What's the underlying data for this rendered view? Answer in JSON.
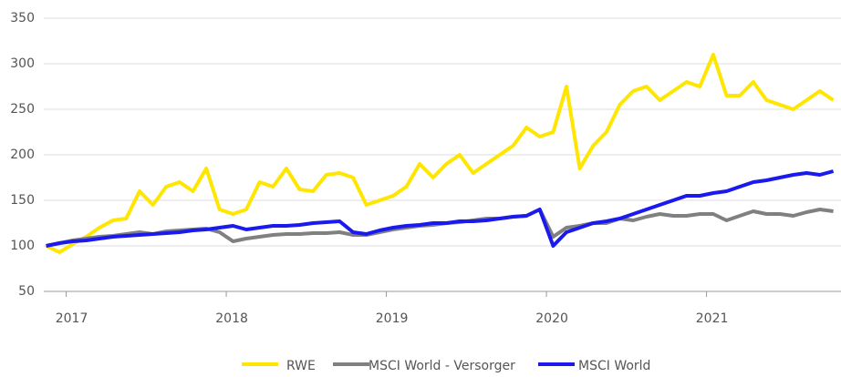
{
  "chart_data": {
    "type": "line",
    "x": [
      2016.875,
      2016.958,
      2017.042,
      2017.125,
      2017.208,
      2017.292,
      2017.375,
      2017.458,
      2017.542,
      2017.625,
      2017.708,
      2017.792,
      2017.875,
      2017.958,
      2018.042,
      2018.125,
      2018.208,
      2018.292,
      2018.375,
      2018.458,
      2018.542,
      2018.625,
      2018.708,
      2018.792,
      2018.875,
      2018.958,
      2019.042,
      2019.125,
      2019.208,
      2019.292,
      2019.375,
      2019.458,
      2019.542,
      2019.625,
      2019.708,
      2019.792,
      2019.875,
      2019.958,
      2020.042,
      2020.125,
      2020.208,
      2020.292,
      2020.375,
      2020.458,
      2020.542,
      2020.625,
      2020.708,
      2020.792,
      2020.875,
      2020.958,
      2021.042,
      2021.125,
      2021.208,
      2021.292,
      2021.375,
      2021.458,
      2021.542,
      2021.625,
      2021.708,
      2021.792
    ],
    "series": [
      {
        "name": "RWE",
        "color": "#ffe600",
        "values": [
          100,
          93,
          102,
          110,
          120,
          128,
          130,
          160,
          145,
          165,
          170,
          160,
          185,
          140,
          135,
          140,
          170,
          165,
          185,
          162,
          160,
          178,
          180,
          175,
          145,
          150,
          155,
          165,
          190,
          175,
          190,
          200,
          180,
          190,
          200,
          210,
          230,
          220,
          225,
          275,
          185,
          210,
          225,
          255,
          270,
          275,
          260,
          270,
          280,
          275,
          310,
          265,
          265,
          280,
          260,
          255,
          250,
          260,
          270,
          260
        ]
      },
      {
        "name": "MSCI World - Versorger",
        "color": "#808080",
        "values": [
          100,
          103,
          106,
          108,
          110,
          111,
          113,
          115,
          113,
          116,
          117,
          118,
          119,
          115,
          105,
          108,
          110,
          112,
          113,
          113,
          114,
          114,
          115,
          112,
          112,
          115,
          118,
          120,
          122,
          123,
          125,
          126,
          128,
          130,
          130,
          132,
          133,
          140,
          110,
          120,
          122,
          125,
          125,
          130,
          128,
          132,
          135,
          133,
          133,
          135,
          135,
          128,
          133,
          138,
          135,
          135,
          133,
          137,
          140,
          138
        ]
      },
      {
        "name": "MSCI World",
        "color": "#1a1aee",
        "values": [
          100,
          103,
          105,
          106,
          108,
          110,
          111,
          112,
          113,
          114,
          115,
          117,
          118,
          120,
          122,
          118,
          120,
          122,
          122,
          123,
          125,
          126,
          127,
          115,
          113,
          117,
          120,
          122,
          123,
          125,
          125,
          127,
          127,
          128,
          130,
          132,
          133,
          140,
          100,
          115,
          120,
          125,
          127,
          130,
          135,
          140,
          145,
          150,
          155,
          155,
          158,
          160,
          165,
          170,
          172,
          175,
          178,
          180,
          178,
          182
        ]
      }
    ],
    "xlim": [
      2016.86,
      2021.84
    ],
    "xticks": [
      2017,
      2018,
      2019,
      2020,
      2021
    ],
    "ylim": [
      50,
      350
    ],
    "yticks": [
      50,
      100,
      150,
      200,
      250,
      300,
      350
    ],
    "grid": true
  }
}
